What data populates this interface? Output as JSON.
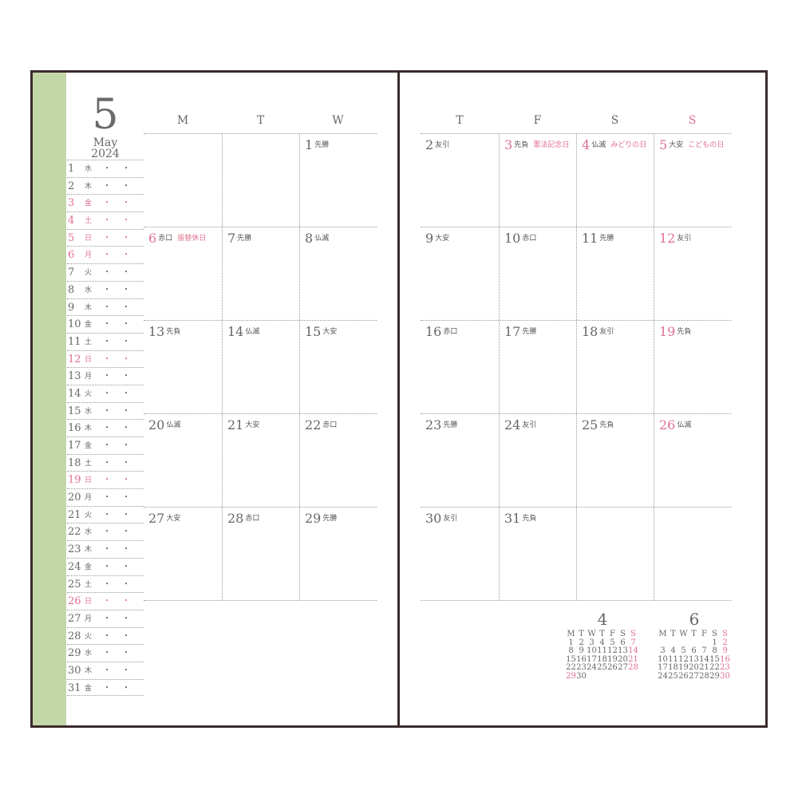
{
  "month": {
    "number": "5",
    "name": "May",
    "year": "2024"
  },
  "colors": {
    "frame": "#3b2b2b",
    "strip": "#c3d6a7",
    "holiday": "#e0708f",
    "text": "#666666"
  },
  "left_headers": [
    "M",
    "T",
    "W"
  ],
  "right_headers": [
    "T",
    "F",
    "S",
    "S"
  ],
  "days": [
    {
      "d": "1",
      "w": "水",
      "rk": "先勝"
    },
    {
      "d": "2",
      "w": "木",
      "rk": "友引"
    },
    {
      "d": "3",
      "w": "金",
      "rk": "先負",
      "hol": "憲法記念日",
      "red": true
    },
    {
      "d": "4",
      "w": "土",
      "rk": "仏滅",
      "hol": "みどりの日",
      "red": true
    },
    {
      "d": "5",
      "w": "日",
      "rk": "大安",
      "hol": "こどもの日",
      "red": true
    },
    {
      "d": "6",
      "w": "月",
      "rk": "赤口",
      "hol": "振替休日",
      "red": true
    },
    {
      "d": "7",
      "w": "火",
      "rk": "先勝"
    },
    {
      "d": "8",
      "w": "水",
      "rk": "仏滅"
    },
    {
      "d": "9",
      "w": "木",
      "rk": "大安"
    },
    {
      "d": "10",
      "w": "金",
      "rk": "赤口"
    },
    {
      "d": "11",
      "w": "土",
      "rk": "先勝"
    },
    {
      "d": "12",
      "w": "日",
      "rk": "友引",
      "red": true
    },
    {
      "d": "13",
      "w": "月",
      "rk": "先負"
    },
    {
      "d": "14",
      "w": "火",
      "rk": "仏滅"
    },
    {
      "d": "15",
      "w": "水",
      "rk": "大安"
    },
    {
      "d": "16",
      "w": "木",
      "rk": "赤口"
    },
    {
      "d": "17",
      "w": "金",
      "rk": "先勝"
    },
    {
      "d": "18",
      "w": "土",
      "rk": "友引"
    },
    {
      "d": "19",
      "w": "日",
      "rk": "先負",
      "red": true
    },
    {
      "d": "20",
      "w": "月",
      "rk": "仏滅"
    },
    {
      "d": "21",
      "w": "火",
      "rk": "大安"
    },
    {
      "d": "22",
      "w": "水",
      "rk": "赤口"
    },
    {
      "d": "23",
      "w": "木",
      "rk": "先勝"
    },
    {
      "d": "24",
      "w": "金",
      "rk": "友引"
    },
    {
      "d": "25",
      "w": "土",
      "rk": "先負"
    },
    {
      "d": "26",
      "w": "日",
      "rk": "仏滅",
      "red": true
    },
    {
      "d": "27",
      "w": "月",
      "rk": "大安"
    },
    {
      "d": "28",
      "w": "火",
      "rk": "赤口"
    },
    {
      "d": "29",
      "w": "水",
      "rk": "先勝"
    },
    {
      "d": "30",
      "w": "木",
      "rk": "友引"
    },
    {
      "d": "31",
      "w": "金",
      "rk": "先負"
    }
  ],
  "list_dots": "・",
  "mini_calendars": [
    {
      "title": "4",
      "headers": [
        "M",
        "T",
        "W",
        "T",
        "F",
        "S",
        "S"
      ],
      "weeks": [
        [
          "1",
          "2",
          "3",
          "4",
          "5",
          "6",
          "7"
        ],
        [
          "8",
          "9",
          "10",
          "11",
          "12",
          "13",
          "14"
        ],
        [
          "15",
          "16",
          "17",
          "18",
          "19",
          "20",
          "21"
        ],
        [
          "22",
          "23",
          "24",
          "25",
          "26",
          "27",
          "28"
        ],
        [
          "29",
          "30",
          "",
          "",
          "",
          "",
          ""
        ]
      ],
      "red_days": [
        "7",
        "14",
        "21",
        "28",
        "29"
      ]
    },
    {
      "title": "6",
      "headers": [
        "M",
        "T",
        "W",
        "T",
        "F",
        "S",
        "S"
      ],
      "weeks": [
        [
          "",
          "",
          "",
          "",
          "",
          "1",
          "2"
        ],
        [
          "3",
          "4",
          "5",
          "6",
          "7",
          "8",
          "9"
        ],
        [
          "10",
          "11",
          "12",
          "13",
          "14",
          "15",
          "16"
        ],
        [
          "17",
          "18",
          "19",
          "20",
          "21",
          "22",
          "23"
        ],
        [
          "24",
          "25",
          "26",
          "27",
          "28",
          "29",
          "30"
        ]
      ],
      "red_days": [
        "2",
        "9",
        "16",
        "23",
        "30"
      ]
    }
  ]
}
